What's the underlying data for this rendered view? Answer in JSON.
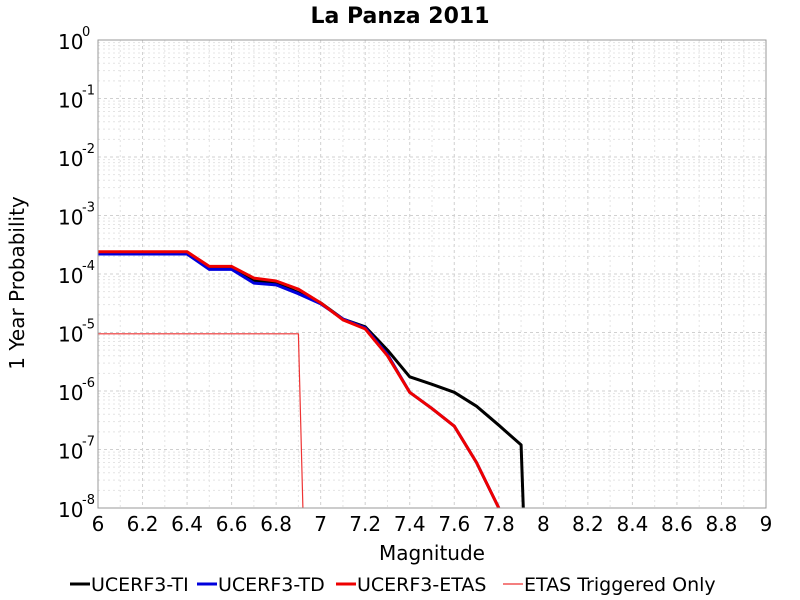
{
  "chart_data": {
    "type": "line",
    "title": "La Panza 2011",
    "xlabel": "Magnitude",
    "ylabel": "1 Year Probability",
    "xlim": [
      6,
      9
    ],
    "ylim": [
      1e-08,
      1
    ],
    "y_scale": "log",
    "grid": true,
    "legend_position": "bottom",
    "x_ticks": [
      "6",
      "6.2",
      "6.4",
      "6.6",
      "6.8",
      "7",
      "7.2",
      "7.4",
      "7.6",
      "7.8",
      "8",
      "8.2",
      "8.4",
      "8.6",
      "8.8",
      "9"
    ],
    "y_ticks": [
      {
        "base": "10",
        "exp": "0"
      },
      {
        "base": "10",
        "exp": "-1"
      },
      {
        "base": "10",
        "exp": "-2"
      },
      {
        "base": "10",
        "exp": "-3"
      },
      {
        "base": "10",
        "exp": "-4"
      },
      {
        "base": "10",
        "exp": "-5"
      },
      {
        "base": "10",
        "exp": "-6"
      },
      {
        "base": "10",
        "exp": "-7"
      },
      {
        "base": "10",
        "exp": "-8"
      }
    ],
    "series": [
      {
        "name": "UCERF3-TI",
        "color": "#000000",
        "width": 3,
        "points": [
          [
            6.0,
            0.00022
          ],
          [
            6.1,
            0.00022
          ],
          [
            6.2,
            0.00022
          ],
          [
            6.3,
            0.00022
          ],
          [
            6.4,
            0.00022
          ],
          [
            6.5,
            0.000125
          ],
          [
            6.6,
            0.000125
          ],
          [
            6.7,
            7.8e-05
          ],
          [
            6.8,
            7e-05
          ],
          [
            6.9,
            4.8e-05
          ],
          [
            7.0,
            3.2e-05
          ],
          [
            7.1,
            1.7e-05
          ],
          [
            7.2,
            1.25e-05
          ],
          [
            7.3,
            5e-06
          ],
          [
            7.4,
            1.75e-06
          ],
          [
            7.5,
            1.3e-06
          ],
          [
            7.6,
            9.5e-07
          ],
          [
            7.7,
            5.5e-07
          ],
          [
            7.8,
            2.6e-07
          ],
          [
            7.9,
            1.2e-07
          ],
          [
            7.91,
            1e-08
          ]
        ]
      },
      {
        "name": "UCERF3-TD",
        "color": "#0000dd",
        "width": 3,
        "points": [
          [
            6.0,
            0.00022
          ],
          [
            6.1,
            0.00022
          ],
          [
            6.2,
            0.00022
          ],
          [
            6.3,
            0.00022
          ],
          [
            6.4,
            0.00022
          ],
          [
            6.5,
            0.00012
          ],
          [
            6.6,
            0.00012
          ],
          [
            6.7,
            7e-05
          ],
          [
            6.8,
            6.5e-05
          ],
          [
            6.9,
            4.6e-05
          ],
          [
            7.0,
            3.1e-05
          ],
          [
            7.1,
            1.7e-05
          ],
          [
            7.2,
            1.2e-05
          ],
          [
            7.3,
            4.2e-06
          ],
          [
            7.4,
            9.5e-07
          ],
          [
            7.5,
            5e-07
          ],
          [
            7.6,
            2.5e-07
          ],
          [
            7.7,
            6e-08
          ],
          [
            7.8,
            1e-08
          ]
        ]
      },
      {
        "name": "UCERF3-ETAS",
        "color": "#ee0000",
        "width": 3,
        "points": [
          [
            6.0,
            0.00024
          ],
          [
            6.1,
            0.00024
          ],
          [
            6.2,
            0.00024
          ],
          [
            6.3,
            0.00024
          ],
          [
            6.4,
            0.00024
          ],
          [
            6.5,
            0.000135
          ],
          [
            6.6,
            0.000135
          ],
          [
            6.7,
            8.5e-05
          ],
          [
            6.8,
            7.6e-05
          ],
          [
            6.9,
            5.5e-05
          ],
          [
            7.0,
            3.2e-05
          ],
          [
            7.1,
            1.65e-05
          ],
          [
            7.2,
            1.15e-05
          ],
          [
            7.3,
            4e-06
          ],
          [
            7.4,
            9.5e-07
          ],
          [
            7.5,
            5e-07
          ],
          [
            7.6,
            2.5e-07
          ],
          [
            7.7,
            6e-08
          ],
          [
            7.8,
            1e-08
          ]
        ]
      },
      {
        "name": "ETAS Triggered Only",
        "color": "#ee3333",
        "width": 1.2,
        "points": [
          [
            6.0,
            9.5e-06
          ],
          [
            6.1,
            9.5e-06
          ],
          [
            6.2,
            9.5e-06
          ],
          [
            6.3,
            9.5e-06
          ],
          [
            6.4,
            9.5e-06
          ],
          [
            6.5,
            9.5e-06
          ],
          [
            6.6,
            9.5e-06
          ],
          [
            6.7,
            9.5e-06
          ],
          [
            6.8,
            9.5e-06
          ],
          [
            6.9,
            9.5e-06
          ],
          [
            6.92,
            1e-08
          ]
        ]
      }
    ]
  }
}
